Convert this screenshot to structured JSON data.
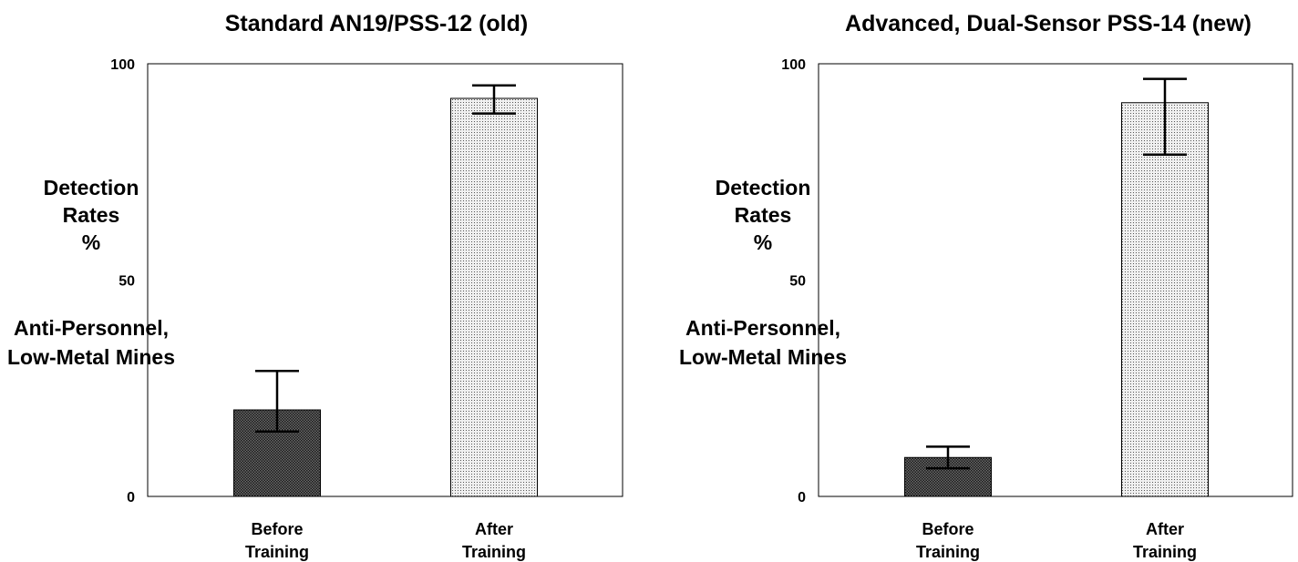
{
  "chart_data": [
    {
      "type": "bar",
      "title": "Standard AN19/PSS-12 (old)",
      "ylabel_lines": [
        "Detection",
        "Rates",
        "%",
        "",
        "Anti-Personnel,",
        "Low-Metal Mines"
      ],
      "yticks": [
        "0",
        "50",
        "100"
      ],
      "ylim": [
        0,
        100
      ],
      "categories": [
        [
          "Before",
          "Training"
        ],
        [
          "After",
          "Training"
        ]
      ],
      "values": [
        20,
        92
      ],
      "error_low": [
        15,
        88.5
      ],
      "error_high": [
        29,
        95
      ],
      "bar_patterns": [
        "dense-dark-dots",
        "light-dots"
      ],
      "grid": false
    },
    {
      "type": "bar",
      "title": "Advanced, Dual-Sensor PSS-14 (new)",
      "ylabel_lines": [
        "Detection",
        "Rates",
        "%",
        "",
        "Anti-Personnel,",
        "Low-Metal Mines"
      ],
      "yticks": [
        "0",
        "50",
        "100"
      ],
      "ylim": [
        0,
        100
      ],
      "categories": [
        [
          "Before",
          "Training"
        ],
        [
          "After",
          "Training"
        ]
      ],
      "values": [
        9,
        91
      ],
      "error_low": [
        6.5,
        79
      ],
      "error_high": [
        11.5,
        96.5
      ],
      "bar_patterns": [
        "dense-dark-dots",
        "light-dots"
      ],
      "grid": false
    }
  ]
}
